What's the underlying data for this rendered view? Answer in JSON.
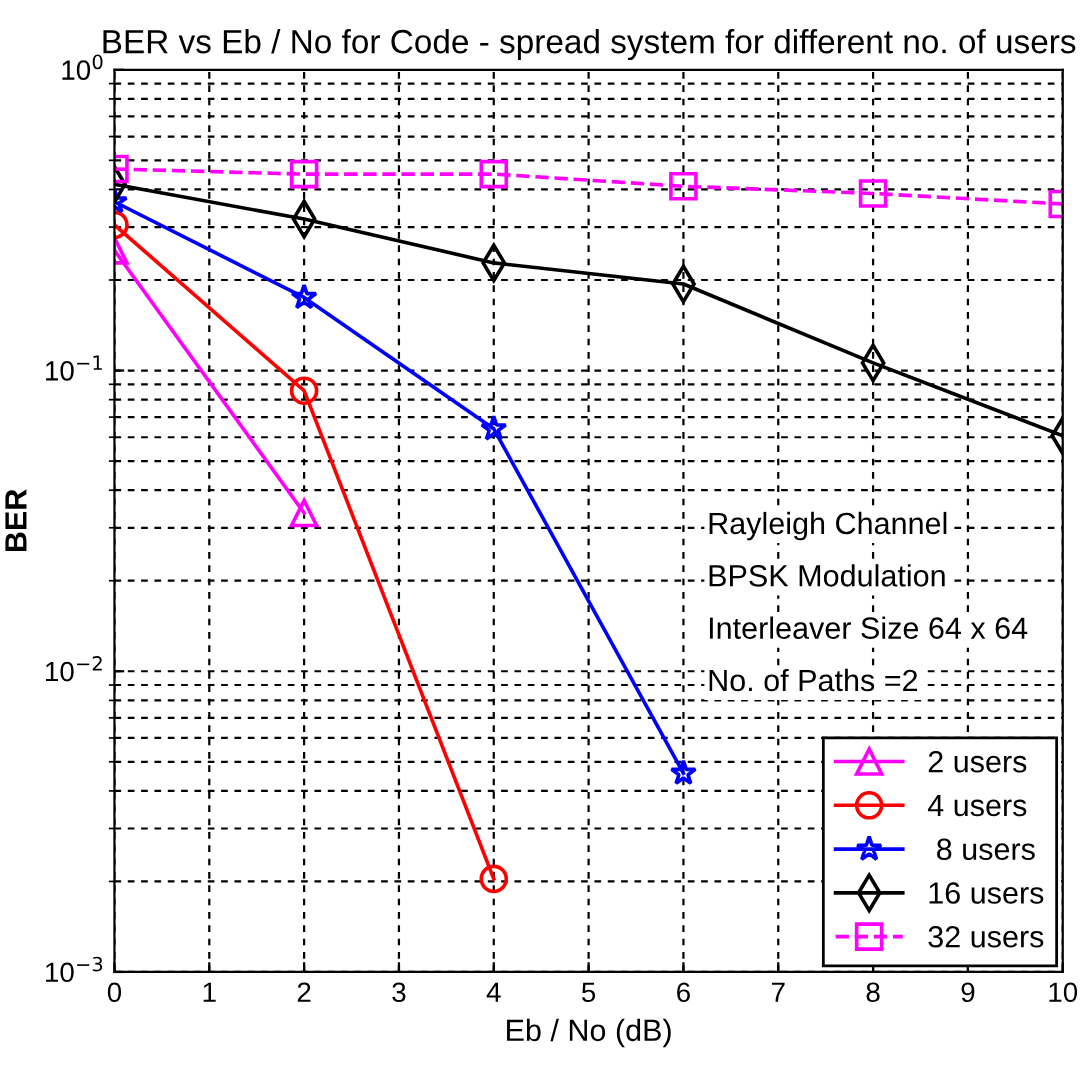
{
  "chart_data": {
    "type": "line",
    "title": "BER vs Eb / No for Code - spread system for different no. of users",
    "xlabel": "Eb / No (dB)",
    "ylabel": "BER",
    "log": "y",
    "grid": true,
    "legend": "bottom right",
    "x": [
      0,
      2,
      4,
      6,
      8,
      10
    ],
    "xlim": [
      0,
      10
    ],
    "xticks": [
      0,
      1,
      2,
      3,
      4,
      5,
      6,
      7,
      8,
      9,
      10
    ],
    "ylim": [
      0.001,
      1
    ],
    "yticks": [
      {
        "value": 0.001,
        "label": "10$^{−3}$"
      },
      {
        "value": 0.01,
        "label": "10$^{−2}$"
      },
      {
        "value": 0.1,
        "label": "10$^{−1}$"
      },
      {
        "value": 1,
        "label": "10$^{0}$"
      }
    ],
    "series": [
      {
        "name": "2 users",
        "color": "#ff00ff",
        "marker": "triangle",
        "line_style": "solid",
        "values": [
          0.251,
          0.0336,
          null,
          null,
          null,
          null
        ]
      },
      {
        "name": "4 users",
        "color": "#ff0000",
        "marker": "circle",
        "line_style": "solid",
        "values": [
          0.305,
          0.0857,
          0.00204,
          null,
          null,
          null
        ]
      },
      {
        "name": " 8 users",
        "color": "#0000ff",
        "marker": "star",
        "line_style": "solid",
        "values": [
          0.364,
          0.175,
          0.064,
          0.00458,
          null,
          null
        ]
      },
      {
        "name": "16 users",
        "color": "#000000",
        "marker": "diamond",
        "line_style": "solid",
        "values": [
          0.416,
          0.319,
          0.228,
          0.194,
          0.106,
          0.0607
        ]
      },
      {
        "name": "32 users",
        "color": "#ff00ff",
        "marker": "square",
        "line_style": "dashed",
        "values": [
          0.468,
          0.45,
          0.45,
          0.41,
          0.388,
          0.358
        ]
      }
    ],
    "annotations": [
      "Rayleigh Channel",
      "BPSK Modulation",
      "Interleaver Size 64 x 64",
      "No. of Paths =2"
    ]
  }
}
